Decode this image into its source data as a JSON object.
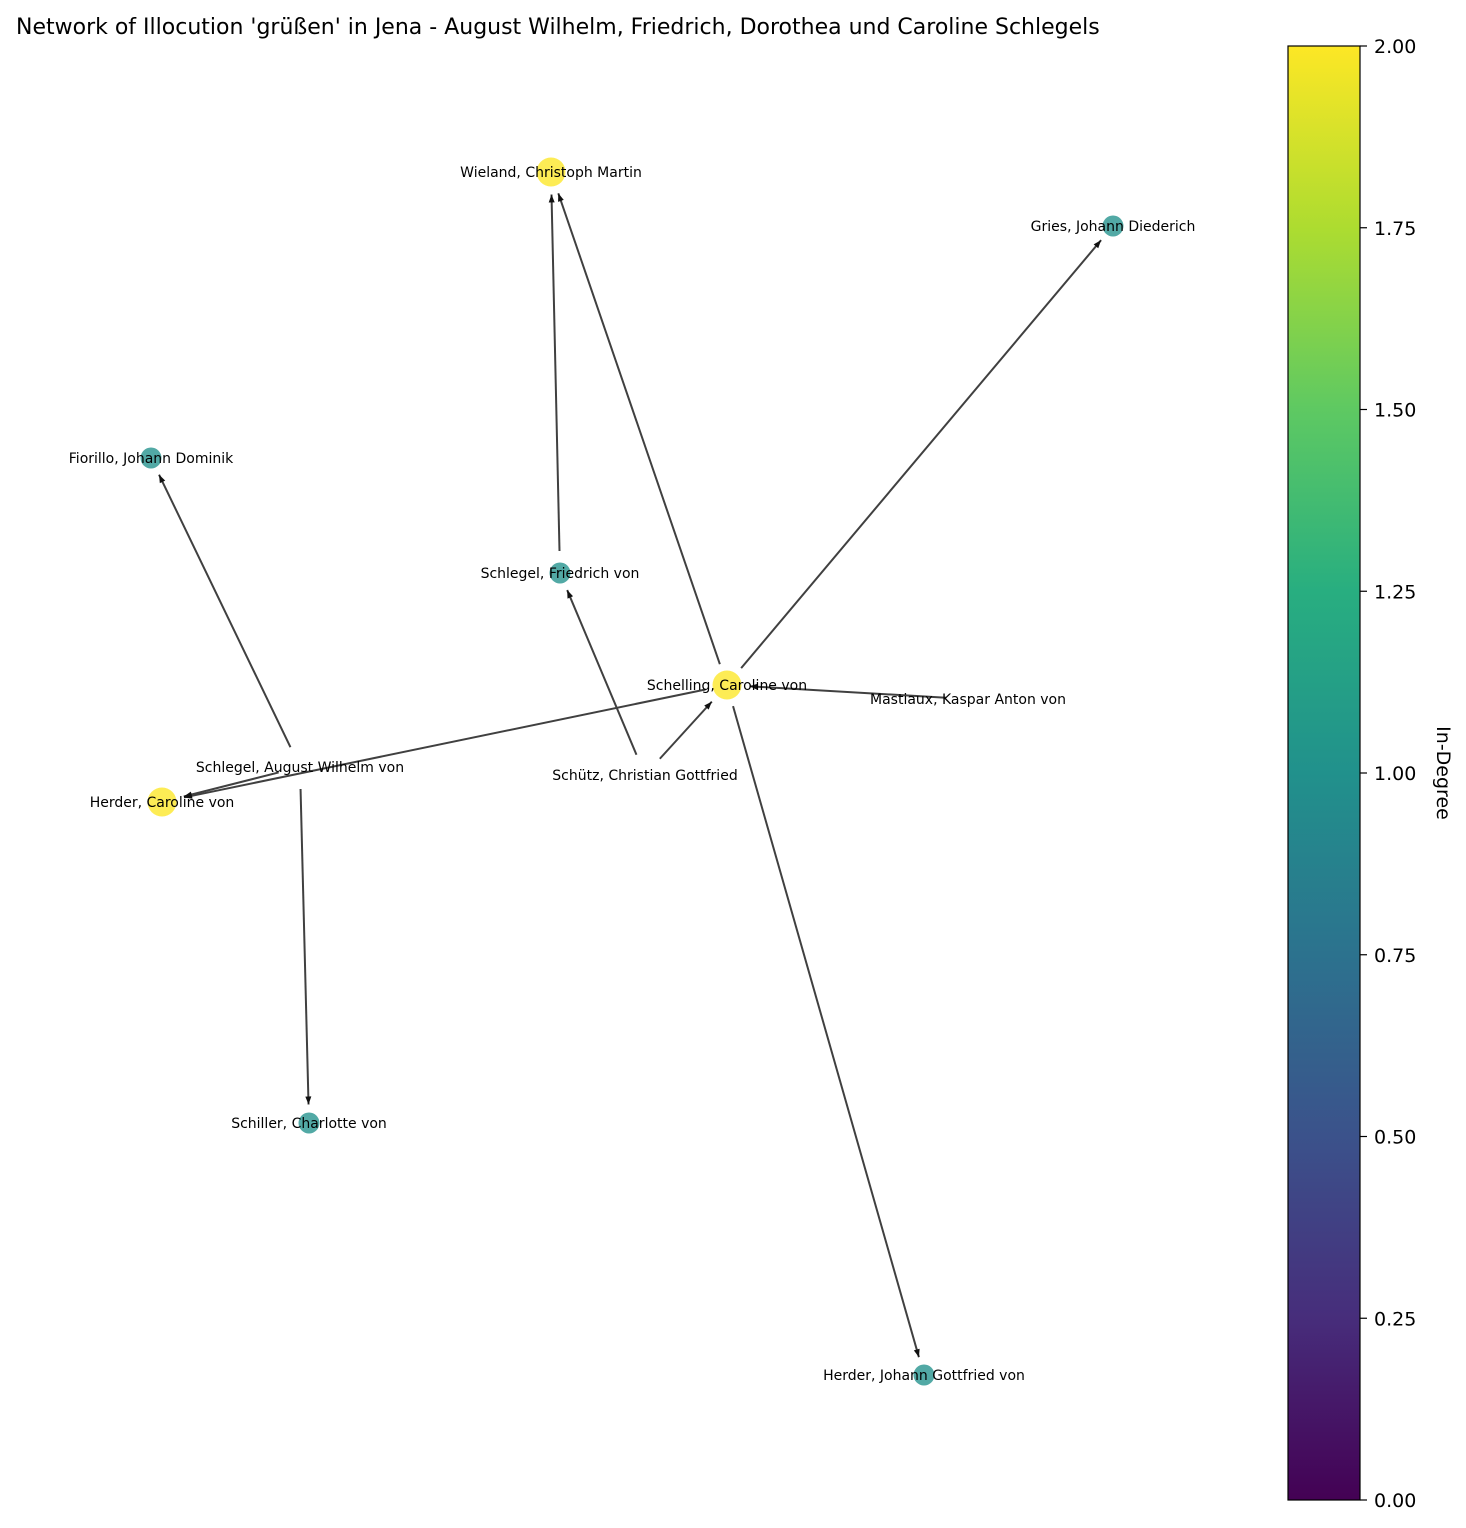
{
  "title": "Network of Illocution 'grüßen' in Jena - August Wilhelm, Friedrich, Dorothea und Caroline Schlegels",
  "nodes": [
    {
      "id": "wieland",
      "label": "Wieland, Christoph Martin",
      "in_degree": 2
    },
    {
      "id": "gries",
      "label": "Gries, Johann Diederich",
      "in_degree": 1
    },
    {
      "id": "fiorillo",
      "label": "Fiorillo, Johann Dominik",
      "in_degree": 1
    },
    {
      "id": "schlegel_f",
      "label": "Schlegel, Friedrich von",
      "in_degree": 1
    },
    {
      "id": "schelling_c",
      "label": "Schelling, Caroline von",
      "in_degree": 2
    },
    {
      "id": "mastiaux",
      "label": "Mastiaux, Kaspar Anton von",
      "in_degree": 0
    },
    {
      "id": "schlegel_aw",
      "label": "Schlegel, August Wilhelm von",
      "in_degree": 0
    },
    {
      "id": "schuetz",
      "label": "Schütz, Christian Gottfried",
      "in_degree": 0
    },
    {
      "id": "herder_c",
      "label": "Herder, Caroline von",
      "in_degree": 2
    },
    {
      "id": "schiller_c",
      "label": "Schiller, Charlotte von",
      "in_degree": 1
    },
    {
      "id": "herder_jg",
      "label": "Herder, Johann Gottfried von",
      "in_degree": 1
    }
  ],
  "edges": [
    {
      "from": "schlegel_f",
      "to": "wieland"
    },
    {
      "from": "schelling_c",
      "to": "wieland"
    },
    {
      "from": "schelling_c",
      "to": "gries"
    },
    {
      "from": "schelling_c",
      "to": "herder_c"
    },
    {
      "from": "schelling_c",
      "to": "herder_jg"
    },
    {
      "from": "mastiaux",
      "to": "schelling_c"
    },
    {
      "from": "schuetz",
      "to": "schelling_c"
    },
    {
      "from": "schuetz",
      "to": "schlegel_f"
    },
    {
      "from": "schlegel_aw",
      "to": "fiorillo"
    },
    {
      "from": "schlegel_aw",
      "to": "herder_c"
    },
    {
      "from": "schlegel_aw",
      "to": "schiller_c"
    }
  ],
  "colorbar": {
    "label": "In-Degree",
    "colormap": "viridis",
    "min": 0,
    "max": 2,
    "ticks": [
      "0.00",
      "0.25",
      "0.50",
      "0.75",
      "1.00",
      "1.25",
      "1.50",
      "1.75",
      "2.00"
    ]
  },
  "colors": {
    "in_degree_2": "#fde725",
    "in_degree_1": "#21918c",
    "edge": "#404040"
  }
}
